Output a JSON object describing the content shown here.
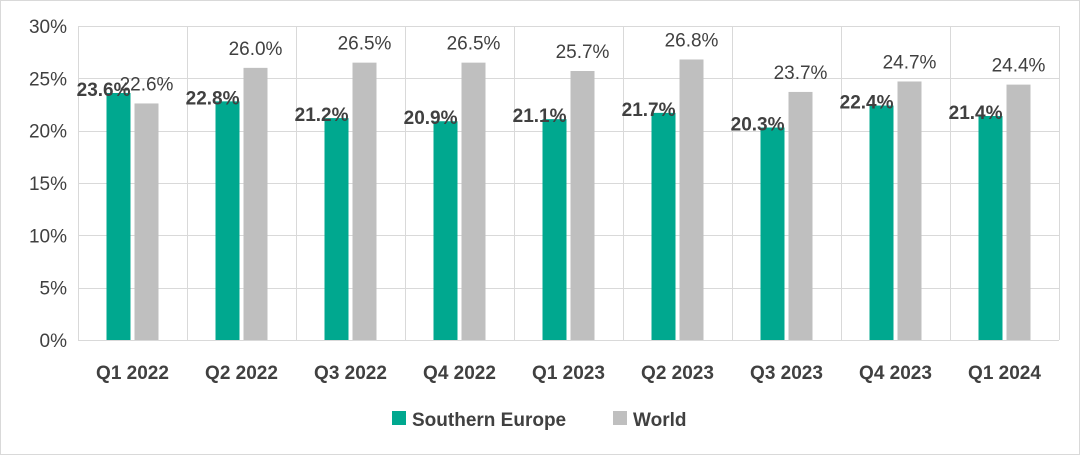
{
  "chart_data": {
    "type": "bar",
    "title": "",
    "xlabel": "",
    "ylabel": "",
    "categories": [
      "Q1 2022",
      "Q2 2022",
      "Q3 2022",
      "Q4 2022",
      "Q1 2023",
      "Q2 2023",
      "Q3 2023",
      "Q4 2023",
      "Q1 2024"
    ],
    "series": [
      {
        "name": "Southern Europe",
        "color": "#00a88f",
        "values": [
          23.6,
          22.8,
          21.2,
          20.9,
          21.1,
          21.7,
          20.3,
          22.4,
          21.4
        ],
        "labels": [
          "23.6%",
          "22.8%",
          "21.2%",
          "20.9%",
          "21.1%",
          "21.7%",
          "20.3%",
          "22.4%",
          "21.4%"
        ]
      },
      {
        "name": "World",
        "color": "#bfbfbf",
        "values": [
          22.6,
          26.0,
          26.5,
          26.5,
          25.7,
          26.8,
          23.7,
          24.7,
          24.4
        ],
        "labels": [
          "22.6%",
          "26.0%",
          "26.5%",
          "26.5%",
          "25.7%",
          "26.8%",
          "23.7%",
          "24.7%",
          "24.4%"
        ]
      }
    ],
    "ylim": [
      0,
      30
    ],
    "yticks": [
      0,
      5,
      10,
      15,
      20,
      25,
      30
    ],
    "ytick_labels": [
      "0%",
      "5%",
      "10%",
      "15%",
      "20%",
      "25%",
      "30%"
    ],
    "grid": true,
    "legend": "bottom-center"
  },
  "colors": {
    "grid": "#d9d9d9",
    "text": "#404040"
  }
}
